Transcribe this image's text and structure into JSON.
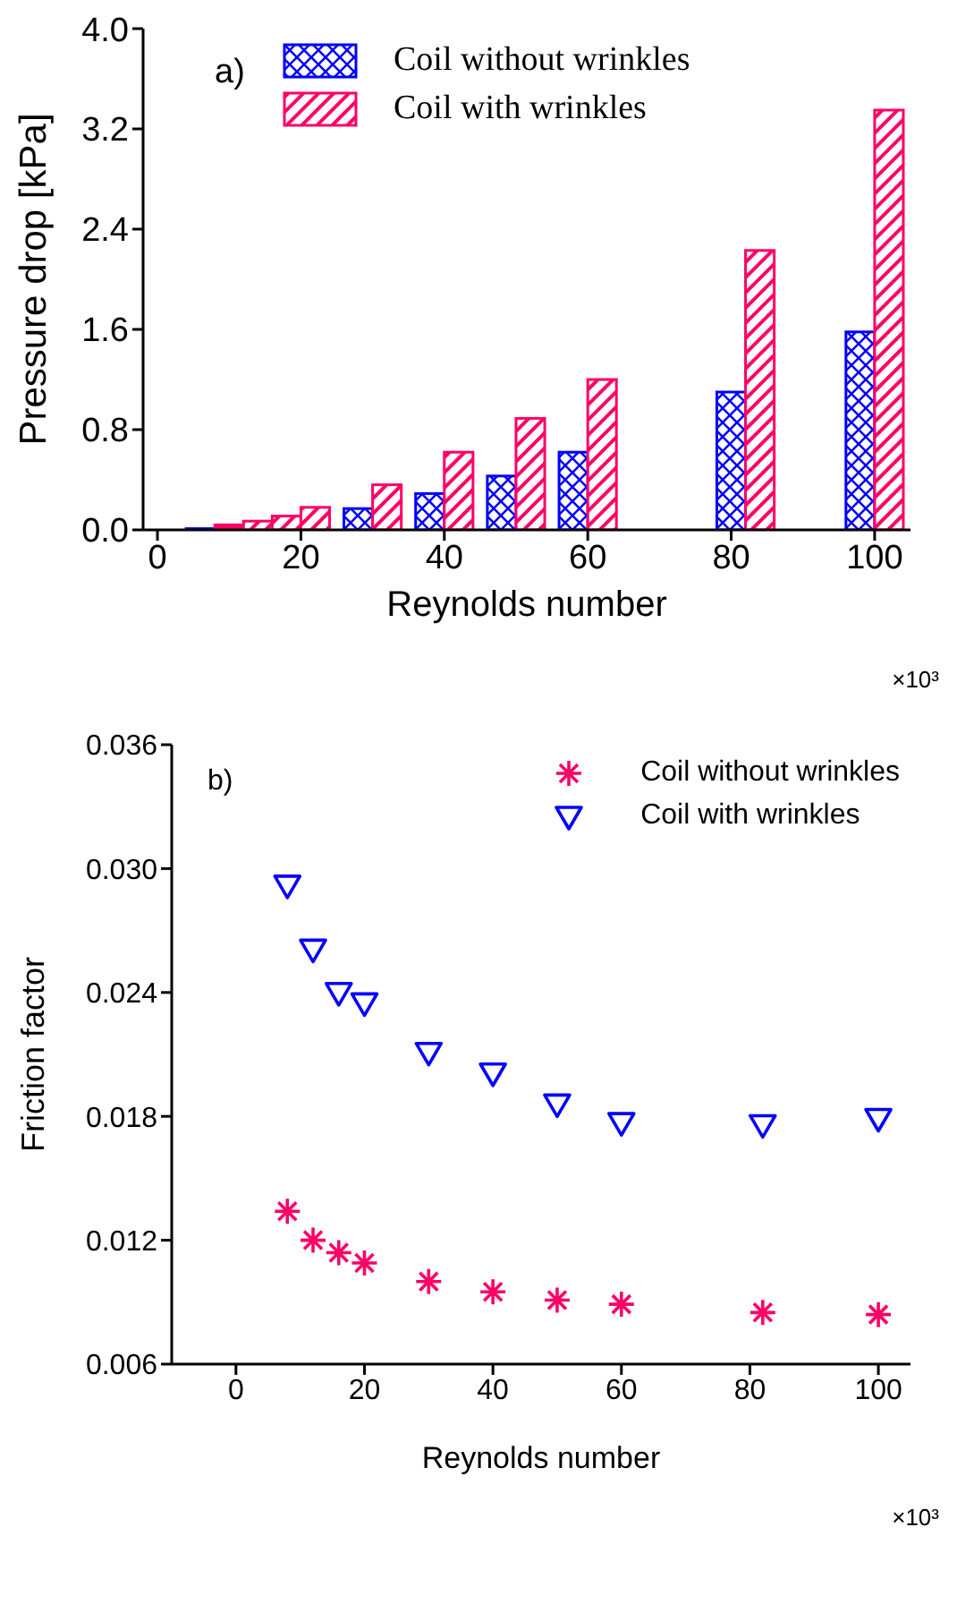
{
  "chart_data": [
    {
      "type": "bar",
      "xlabel": "Reynolds number",
      "ylabel": "Pressure drop [kPa]",
      "x": [
        8,
        12,
        16,
        20,
        30,
        40,
        50,
        60,
        82,
        100
      ],
      "series": [
        {
          "name": "Coil without wrinkles",
          "color": "#0000ff",
          "values": [
            0.01,
            null,
            null,
            null,
            0.17,
            0.29,
            0.43,
            0.62,
            1.1,
            1.58
          ]
        },
        {
          "name": "Coil with wrinkles",
          "color": "#ff0066",
          "values": [
            0.04,
            0.07,
            0.11,
            0.18,
            0.36,
            0.62,
            0.89,
            1.2,
            2.23,
            3.35
          ]
        }
      ],
      "xlim": [
        -2,
        105
      ],
      "xticks": [
        0,
        20,
        40,
        60,
        80,
        100
      ],
      "ylim": [
        0,
        4
      ],
      "yticks": [
        {
          "value": 0,
          "label": "0.0"
        },
        0.8,
        1.6,
        2.4,
        3.2,
        {
          "value": 4,
          "label": "4.0"
        }
      ],
      "legend": "top",
      "grid": false,
      "annotations": [
        "a)",
        "×10³"
      ]
    },
    {
      "type": "scatter",
      "xlabel": "Reynolds number",
      "ylabel": "Friction factor",
      "series": [
        {
          "name": "Coil without wrinkles",
          "color": "#ff0066",
          "marker": "cross",
          "x": [
            8,
            12,
            16,
            20,
            30,
            40,
            50,
            60,
            82,
            100
          ],
          "values": [
            0.0134,
            0.012,
            0.0114,
            0.0109,
            0.01,
            0.0095,
            0.0091,
            0.0089,
            0.0085,
            0.0084
          ]
        },
        {
          "name": "Coil with wrinkles",
          "color": "#0000ff",
          "marker": "triangle",
          "x": [
            8,
            12,
            16,
            20,
            30,
            40,
            50,
            60,
            82,
            100
          ],
          "values": [
            0.0292,
            0.0261,
            0.024,
            0.0235,
            0.0211,
            0.0201,
            0.0186,
            0.0177,
            0.0176,
            0.0179
          ]
        }
      ],
      "xlim": [
        -10,
        105
      ],
      "xticks": [
        0,
        20,
        40,
        60,
        80,
        100
      ],
      "ylim": [
        0.006,
        0.036
      ],
      "yticks": [
        0.006,
        0.012,
        0.018,
        0.024,
        {
          "value": 0.03,
          "label": "0.030"
        },
        0.036
      ],
      "legend": "top right",
      "grid": false,
      "annotations": [
        "b)",
        "×10³"
      ]
    }
  ]
}
